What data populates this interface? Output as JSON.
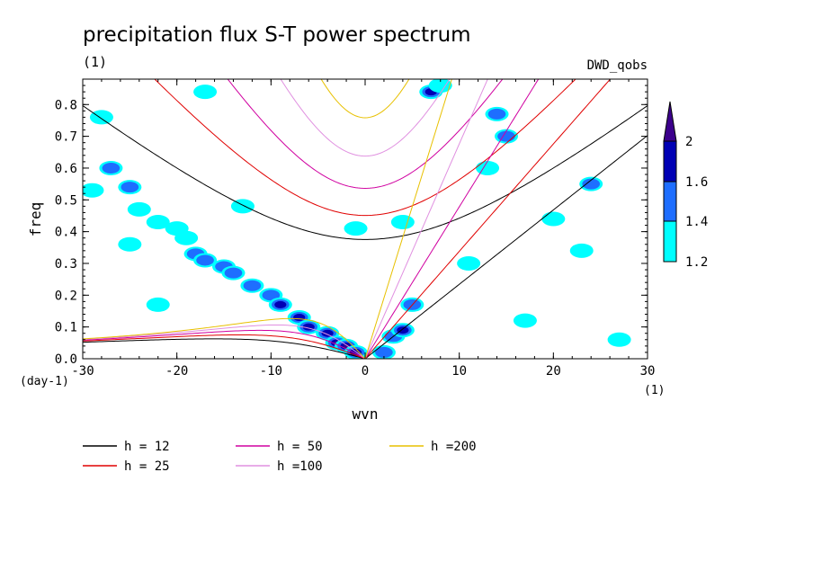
{
  "chart_data": {
    "type": "heatmap",
    "title": "precipitation flux S-T power spectrum",
    "subtitle_left": "(1)",
    "subtitle_right": "DWD_qobs",
    "xlabel": "wvn",
    "ylabel": "freq",
    "x_unit": "(1)",
    "y_unit": "(day-1)",
    "xlim": [
      -30,
      30
    ],
    "ylim": [
      0,
      0.88
    ],
    "x_ticks": [
      -30,
      -20,
      -10,
      0,
      10,
      20,
      30
    ],
    "x_tick_labels": [
      "-30",
      "-20",
      "-10",
      "0",
      "10",
      "20",
      "30"
    ],
    "y_ticks": [
      0,
      0.1,
      0.2,
      0.3,
      0.4,
      0.5,
      0.6,
      0.7,
      0.8
    ],
    "y_tick_labels": [
      "0.0",
      "0.1",
      "0.2",
      "0.3",
      "0.4",
      "0.5",
      "0.6",
      "0.7",
      "0.8"
    ],
    "colorbar": {
      "levels": [
        1.2,
        1.4,
        1.6,
        2
      ],
      "labels": [
        "1.2",
        "1.4",
        "1.6",
        "2"
      ],
      "colors": [
        "#00ffff",
        "#1e6eff",
        "#0000b4",
        "#3c008c"
      ]
    },
    "dispersion_curves": [
      {
        "label": "h = 12",
        "h": 12,
        "color": "#000000"
      },
      {
        "label": "h = 25",
        "h": 25,
        "color": "#e00000"
      },
      {
        "label": "h = 50",
        "h": 50,
        "color": "#d000a0"
      },
      {
        "label": "h =100",
        "h": 100,
        "color": "#e090e0"
      },
      {
        "label": "h =200",
        "h": 200,
        "color": "#e8c000"
      }
    ],
    "power_blobs": [
      {
        "x": -28,
        "y": 0.76,
        "level": 1
      },
      {
        "x": -27,
        "y": 0.6,
        "level": 2
      },
      {
        "x": -25,
        "y": 0.54,
        "level": 2
      },
      {
        "x": -24,
        "y": 0.47,
        "level": 1
      },
      {
        "x": -22,
        "y": 0.43,
        "level": 1
      },
      {
        "x": -20,
        "y": 0.41,
        "level": 1
      },
      {
        "x": -19,
        "y": 0.38,
        "level": 1
      },
      {
        "x": -18,
        "y": 0.33,
        "level": 2
      },
      {
        "x": -17,
        "y": 0.31,
        "level": 2
      },
      {
        "x": -15,
        "y": 0.29,
        "level": 2
      },
      {
        "x": -14,
        "y": 0.27,
        "level": 2
      },
      {
        "x": -12,
        "y": 0.23,
        "level": 2
      },
      {
        "x": -10,
        "y": 0.2,
        "level": 2
      },
      {
        "x": -9,
        "y": 0.17,
        "level": 3
      },
      {
        "x": -7,
        "y": 0.13,
        "level": 3
      },
      {
        "x": -6,
        "y": 0.1,
        "level": 3
      },
      {
        "x": -4,
        "y": 0.08,
        "level": 3
      },
      {
        "x": -3,
        "y": 0.05,
        "level": 4
      },
      {
        "x": -2,
        "y": 0.04,
        "level": 4
      },
      {
        "x": -1,
        "y": 0.02,
        "level": 3
      },
      {
        "x": 2,
        "y": 0.02,
        "level": 2
      },
      {
        "x": 3,
        "y": 0.07,
        "level": 2
      },
      {
        "x": 4,
        "y": 0.09,
        "level": 3
      },
      {
        "x": 5,
        "y": 0.17,
        "level": 2
      },
      {
        "x": 7,
        "y": 0.84,
        "level": 3
      },
      {
        "x": 8,
        "y": 0.86,
        "level": 1
      },
      {
        "x": 14,
        "y": 0.77,
        "level": 2
      },
      {
        "x": 15,
        "y": 0.7,
        "level": 2
      },
      {
        "x": 24,
        "y": 0.55,
        "level": 2
      },
      {
        "x": -1,
        "y": 0.41,
        "level": 1
      },
      {
        "x": 4,
        "y": 0.43,
        "level": 1
      },
      {
        "x": 11,
        "y": 0.3,
        "level": 1
      },
      {
        "x": -25,
        "y": 0.36,
        "level": 1
      },
      {
        "x": -13,
        "y": 0.48,
        "level": 1
      },
      {
        "x": 20,
        "y": 0.44,
        "level": 1
      },
      {
        "x": 27,
        "y": 0.06,
        "level": 1
      },
      {
        "x": 23,
        "y": 0.34,
        "level": 1
      },
      {
        "x": -22,
        "y": 0.17,
        "level": 1
      },
      {
        "x": -29,
        "y": 0.53,
        "level": 1
      },
      {
        "x": 13,
        "y": 0.6,
        "level": 1
      },
      {
        "x": 17,
        "y": 0.12,
        "level": 1
      },
      {
        "x": -17,
        "y": 0.84,
        "level": 1
      }
    ]
  }
}
